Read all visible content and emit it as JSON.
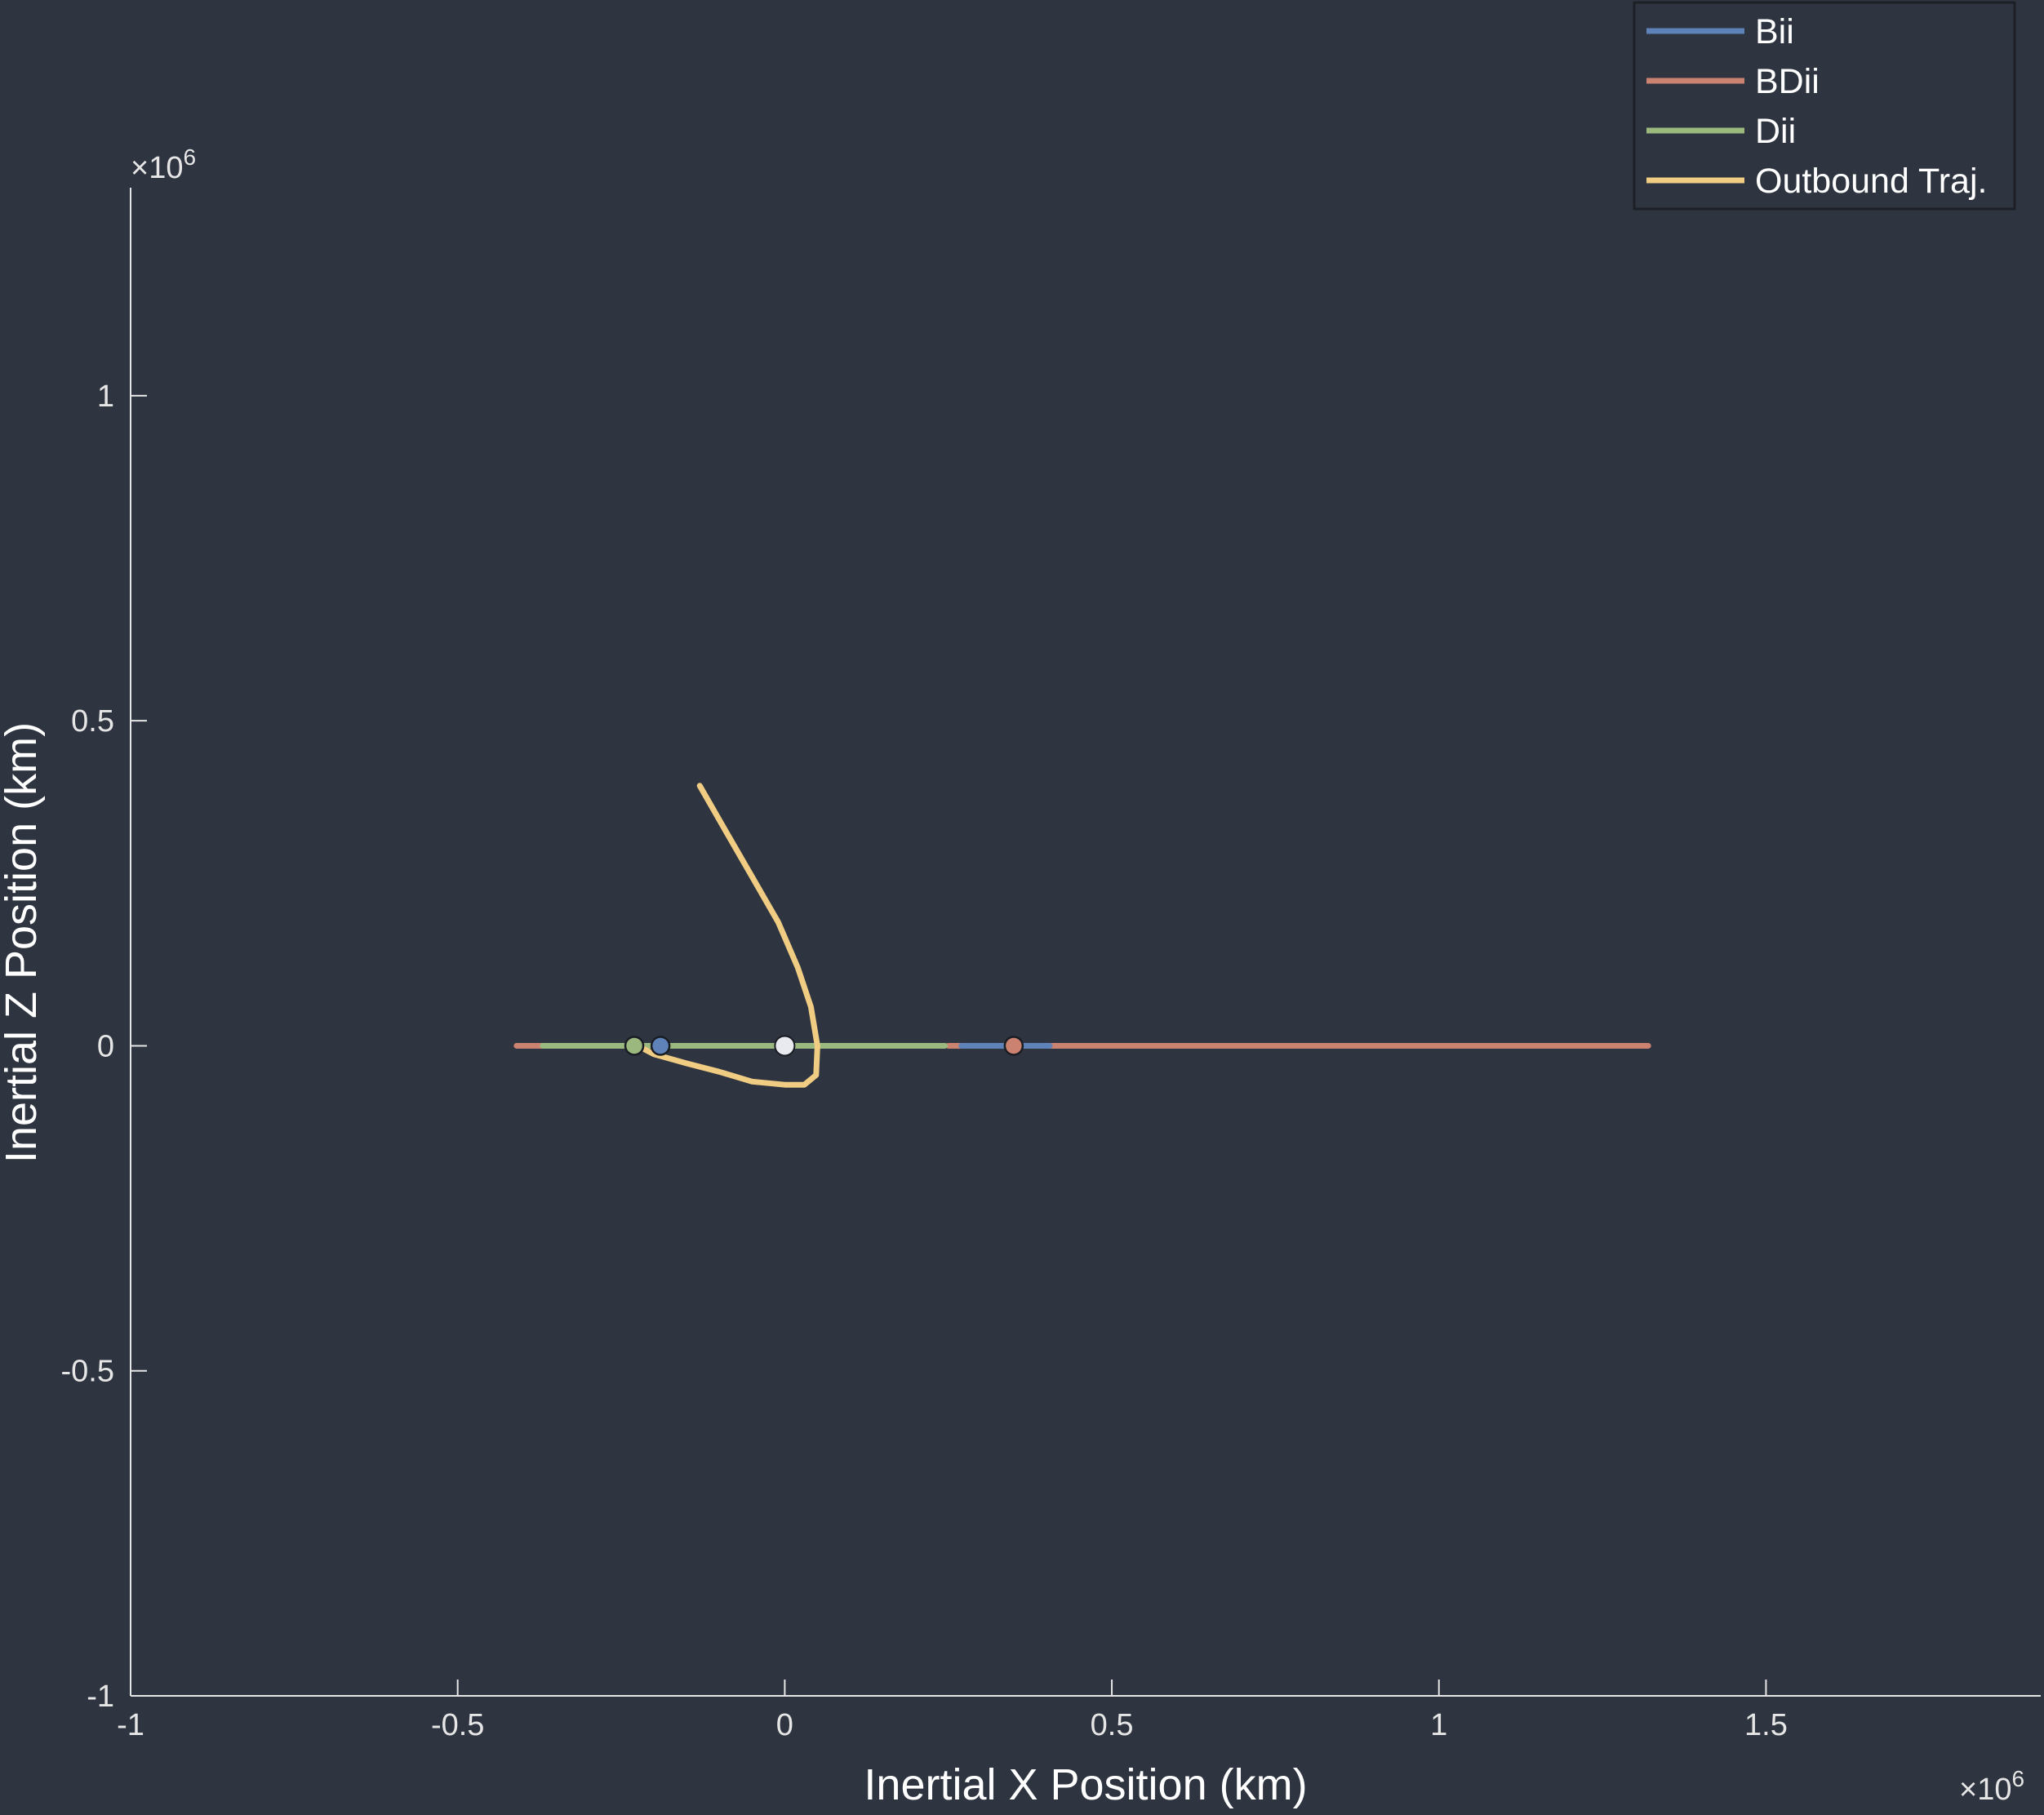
{
  "colors": {
    "background": "#2e3440",
    "axis": "#e6e6e6",
    "legend_border": "#1c1f26",
    "Bii": "#5f83b8",
    "BDii": "#cc8270",
    "Dii": "#9bb87e",
    "Outbound Traj.": "#f0cd83",
    "origin_marker": "#e8eaf0"
  },
  "chart_data": {
    "type": "line",
    "title": "",
    "xlabel": "Inertial X Position (km)",
    "ylabel": "Inertial Z Position (km)",
    "x_exponent_base": "×10",
    "x_exponent_power": "6",
    "y_exponent_base": "×10",
    "y_exponent_power": "6",
    "xlim": [
      -1.0,
      1.92
    ],
    "ylim": [
      -1.0,
      1.32
    ],
    "x_ticks": [
      -1,
      -0.5,
      0,
      0.5,
      1,
      1.5
    ],
    "x_tick_labels": [
      "-1",
      "-0.5",
      "0",
      "0.5",
      "1",
      "1.5"
    ],
    "y_ticks": [
      -1,
      -0.5,
      0,
      0.5,
      1
    ],
    "y_tick_labels": [
      "-1",
      "-0.5",
      "0",
      "0.5",
      "1"
    ],
    "grid": false,
    "legend_position": "top-right",
    "series": [
      {
        "name": "Bii",
        "kind": "segments",
        "segments": [
          [
            [
              -0.37,
              0
            ],
            [
              -0.37,
              0
            ]
          ],
          [
            [
              0.27,
              0
            ],
            [
              0.405,
              0
            ]
          ]
        ],
        "marker": [
          -0.19,
          0
        ]
      },
      {
        "name": "BDii",
        "kind": "segments",
        "segments": [
          [
            [
              -0.41,
              0
            ],
            [
              -0.37,
              0
            ]
          ],
          [
            [
              0.25,
              0
            ],
            [
              0.27,
              0
            ]
          ],
          [
            [
              0.405,
              0
            ],
            [
              1.32,
              0
            ]
          ]
        ],
        "marker": [
          0.35,
          0
        ]
      },
      {
        "name": "Dii",
        "kind": "segments",
        "segments": [
          [
            [
              -0.37,
              0
            ],
            [
              0.245,
              0
            ]
          ]
        ],
        "marker": [
          -0.23,
          0
        ]
      },
      {
        "name": "Outbound Traj.",
        "kind": "curve",
        "points": [
          [
            -0.13,
            0.4
          ],
          [
            -0.09,
            0.33
          ],
          [
            -0.05,
            0.26
          ],
          [
            -0.01,
            0.19
          ],
          [
            0.02,
            0.12
          ],
          [
            0.04,
            0.06
          ],
          [
            0.05,
            0.0
          ],
          [
            0.048,
            -0.045
          ],
          [
            0.03,
            -0.06
          ],
          [
            0.0,
            -0.06
          ],
          [
            -0.05,
            -0.055
          ],
          [
            -0.1,
            -0.04
          ],
          [
            -0.15,
            -0.027
          ],
          [
            -0.2,
            -0.013
          ],
          [
            -0.225,
            0.0
          ]
        ]
      }
    ],
    "origin_marker": [
      0,
      0
    ]
  },
  "legend": [
    "Bii",
    "BDii",
    "Dii",
    "Outbound Traj."
  ]
}
